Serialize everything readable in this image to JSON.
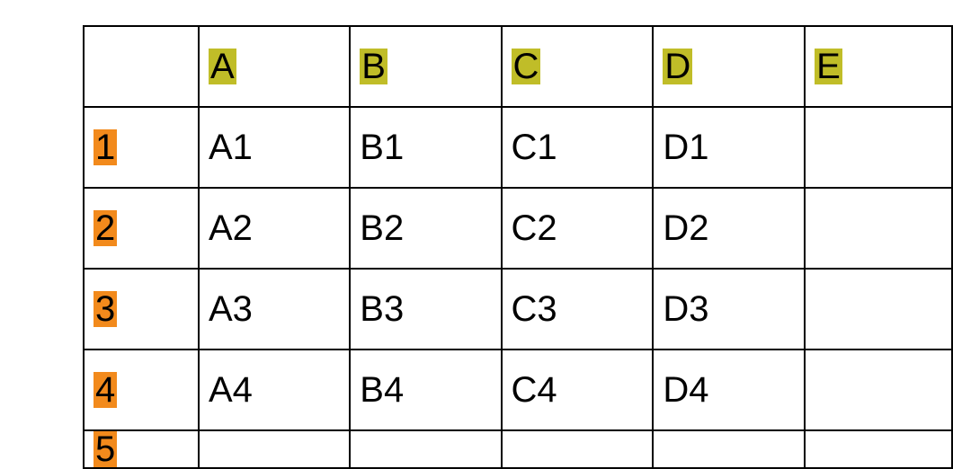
{
  "spreadsheet": {
    "col_header_highlight": "#c0bd28",
    "row_header_highlight": "#f28a1c",
    "border_color": "#000000",
    "background": "#ffffff",
    "font_size": 40,
    "columns": [
      "A",
      "B",
      "C",
      "D"
    ],
    "partial_next_column": "E",
    "rows": [
      "1",
      "2",
      "3",
      "4"
    ],
    "partial_next_row": "5",
    "cells": {
      "r1": {
        "A": "A1",
        "B": "B1",
        "C": "C1",
        "D": "D1"
      },
      "r2": {
        "A": "A2",
        "B": "B2",
        "C": "C2",
        "D": "D2"
      },
      "r3": {
        "A": "A3",
        "B": "B3",
        "C": "C3",
        "D": "D3"
      },
      "r4": {
        "A": "A4",
        "B": "B4",
        "C": "C4",
        "D": "D4"
      }
    }
  }
}
